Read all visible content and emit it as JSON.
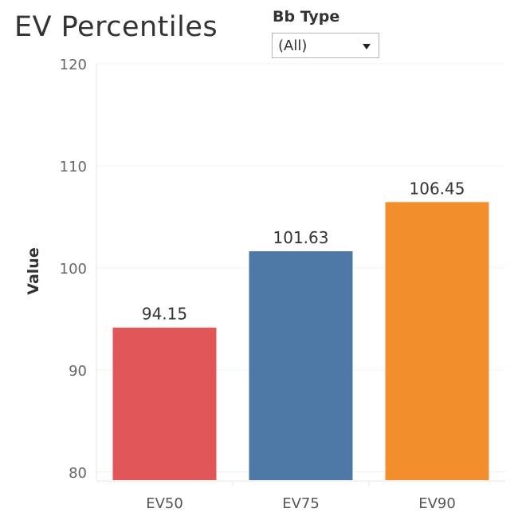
{
  "page": {
    "title": "EV Percentiles"
  },
  "filter": {
    "label": "Bb Type",
    "selected": "(All)",
    "icon": "chevron-down-icon"
  },
  "chart_data": {
    "type": "bar",
    "categories": [
      "EV50",
      "EV75",
      "EV90"
    ],
    "values": [
      94.15,
      101.63,
      106.45
    ],
    "value_labels": [
      "94.15",
      "101.63",
      "106.45"
    ],
    "colors": [
      "#e15759",
      "#4e79a7",
      "#f28e2b"
    ],
    "ylabel": "Value",
    "xlabel": "",
    "ylim": [
      79.2,
      120
    ],
    "yticks": [
      80,
      90,
      100,
      110,
      120
    ],
    "grid": true
  }
}
